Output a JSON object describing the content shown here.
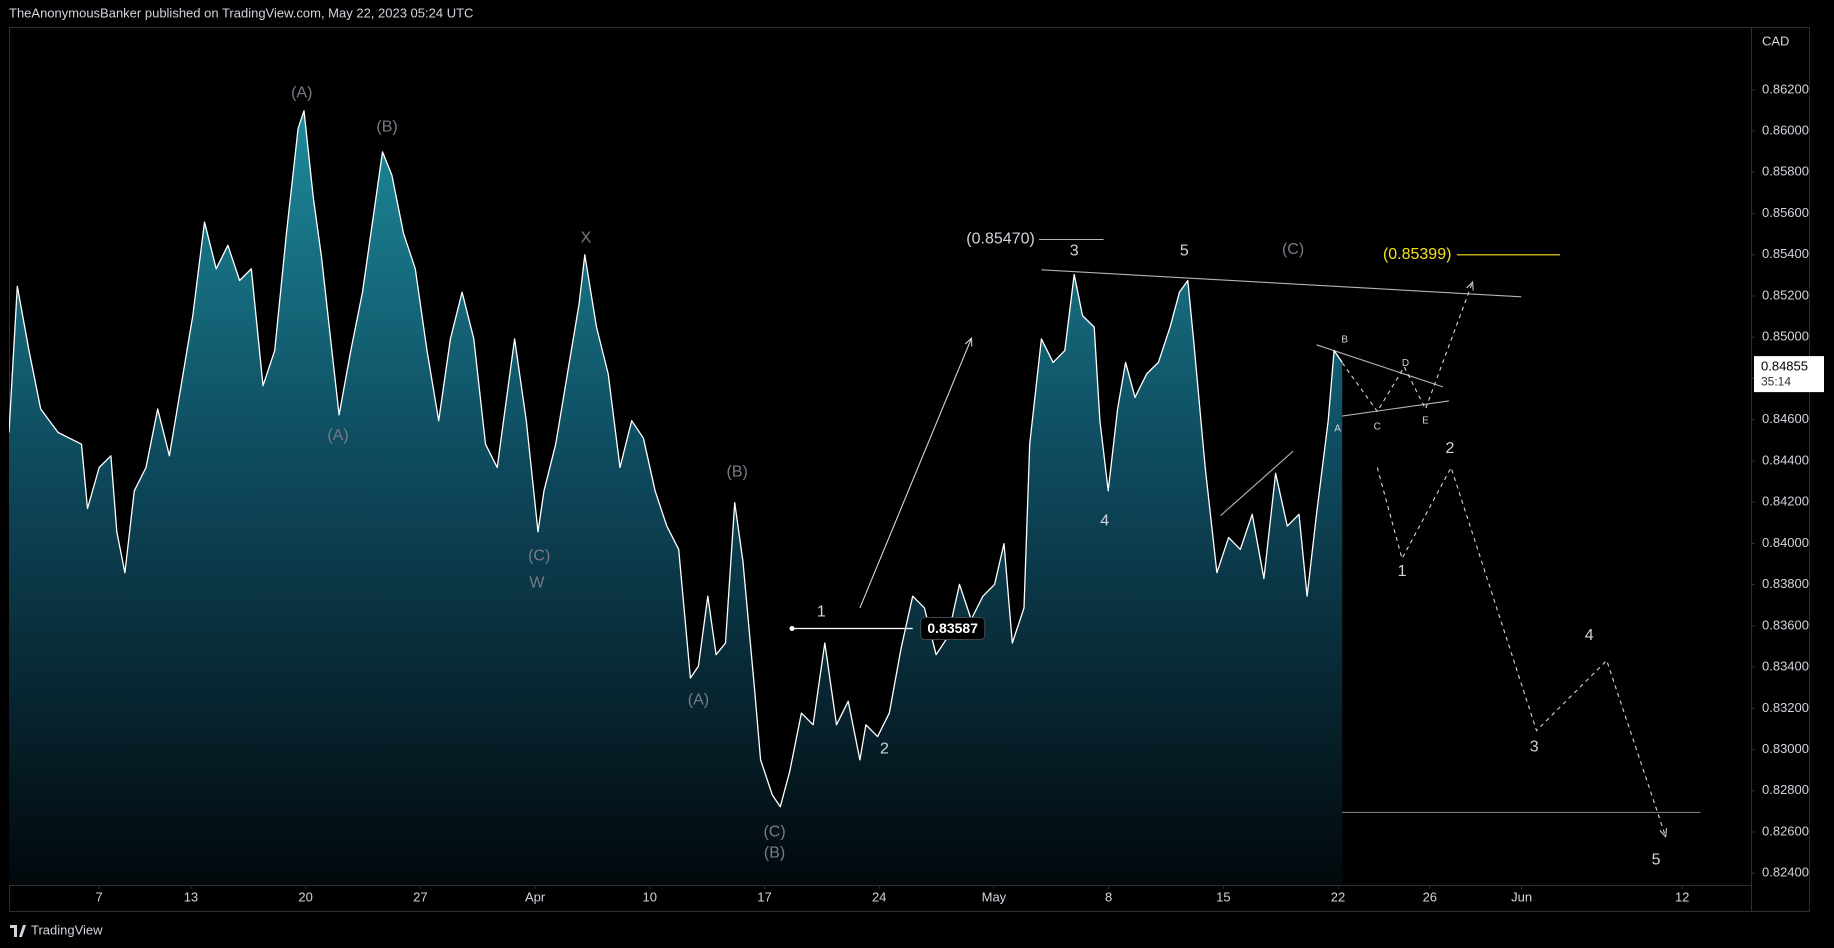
{
  "header": "TheAnonymousBanker published on TradingView.com, May 22, 2023 05:24 UTC",
  "footer": "TradingView",
  "chart_data": {
    "type": "area",
    "currency": "CAD",
    "xlim": [
      -3.93,
      72.0
    ],
    "ylim": [
      0.82343,
      0.86495
    ],
    "xticks": [
      {
        "value": 0,
        "label": "7"
      },
      {
        "value": 4,
        "label": "13"
      },
      {
        "value": 9,
        "label": "20"
      },
      {
        "value": 14,
        "label": "27"
      },
      {
        "value": 19,
        "label": "Apr"
      },
      {
        "value": 24,
        "label": "10"
      },
      {
        "value": 29,
        "label": "17"
      },
      {
        "value": 34,
        "label": "24"
      },
      {
        "value": 39,
        "label": "May"
      },
      {
        "value": 44,
        "label": "8"
      },
      {
        "value": 49,
        "label": "15"
      },
      {
        "value": 54,
        "label": "22"
      },
      {
        "value": 58,
        "label": "26"
      },
      {
        "value": 62,
        "label": "Jun"
      },
      {
        "value": 69,
        "label": "12"
      }
    ],
    "yticks": [
      {
        "value": 0.824,
        "label": "0.82400"
      },
      {
        "value": 0.826,
        "label": "0.82600"
      },
      {
        "value": 0.828,
        "label": "0.82800"
      },
      {
        "value": 0.83,
        "label": "0.83000"
      },
      {
        "value": 0.832,
        "label": "0.83200"
      },
      {
        "value": 0.834,
        "label": "0.83400"
      },
      {
        "value": 0.836,
        "label": "0.83600"
      },
      {
        "value": 0.838,
        "label": "0.83800"
      },
      {
        "value": 0.84,
        "label": "0.84000"
      },
      {
        "value": 0.842,
        "label": "0.84200"
      },
      {
        "value": 0.844,
        "label": "0.84400"
      },
      {
        "value": 0.846,
        "label": "0.84600"
      },
      {
        "value": 0.848,
        "label": "0.84800"
      },
      {
        "value": 0.85,
        "label": "0.85000"
      },
      {
        "value": 0.852,
        "label": "0.85200"
      },
      {
        "value": 0.854,
        "label": "0.85400"
      },
      {
        "value": 0.856,
        "label": "0.85600"
      },
      {
        "value": 0.858,
        "label": "0.85800"
      },
      {
        "value": 0.86,
        "label": "0.86000"
      },
      {
        "value": 0.862,
        "label": "0.86200"
      }
    ],
    "series": [
      {
        "color": "#ffffff",
        "x": [
          -3.93,
          -3.57,
          -3.06,
          -2.55,
          -1.79,
          -0.77,
          -0.51,
          0,
          0.51,
          0.77,
          1.12,
          1.53,
          2.04,
          2.55,
          3.06,
          3.57,
          4.08,
          4.59,
          5.1,
          5.61,
          6.12,
          6.63,
          7.14,
          7.65,
          8.16,
          8.67,
          8.93,
          9.34,
          9.69,
          10.2,
          10.46,
          10.97,
          11.48,
          11.99,
          12.35,
          12.76,
          13.27,
          13.78,
          14.29,
          14.8,
          15.31,
          15.82,
          16.33,
          16.84,
          17.35,
          18.11,
          18.62,
          19.13,
          19.39,
          19.9,
          20.41,
          20.92,
          21.17,
          21.68,
          22.19,
          22.7,
          23.21,
          23.72,
          24.23,
          24.74,
          25.26,
          25.77,
          26.12,
          26.53,
          26.89,
          27.3,
          27.7,
          28.06,
          28.57,
          28.83,
          29.34,
          29.69,
          30.1,
          30.61,
          31.12,
          31.63,
          32.14,
          32.65,
          33.16,
          33.42,
          33.93,
          34.44,
          34.95,
          35.46,
          35.97,
          36.48,
          36.99,
          37.5,
          38.01,
          38.52,
          39.03,
          39.44,
          39.8,
          40.31,
          40.56,
          41.07,
          41.58,
          42.09,
          42.5,
          42.86,
          43.37,
          43.62,
          43.98,
          44.39,
          44.74,
          45.15,
          45.66,
          46.17,
          46.68,
          47.09,
          47.45,
          47.7,
          48.21,
          48.72,
          49.23,
          49.74,
          50.26,
          50.77,
          51.28,
          51.79,
          52.3,
          52.65,
          53.06,
          53.57,
          53.83,
          54.18
        ],
        "values": [
          0.84538,
          0.85247,
          0.84935,
          0.84652,
          0.84538,
          0.84481,
          0.84169,
          0.84368,
          0.84425,
          0.84056,
          0.83858,
          0.84255,
          0.84368,
          0.84652,
          0.84425,
          0.84765,
          0.85105,
          0.85559,
          0.85332,
          0.85446,
          0.85275,
          0.85332,
          0.84765,
          0.84935,
          0.85502,
          0.86013,
          0.86098,
          0.85673,
          0.85389,
          0.84878,
          0.84623,
          0.84935,
          0.85219,
          0.85616,
          0.85899,
          0.85786,
          0.85502,
          0.85332,
          0.84935,
          0.84595,
          0.84992,
          0.85219,
          0.84992,
          0.84481,
          0.84368,
          0.84992,
          0.84595,
          0.84056,
          0.84255,
          0.84481,
          0.84822,
          0.85162,
          0.854,
          0.85049,
          0.84822,
          0.84368,
          0.84595,
          0.8451,
          0.84255,
          0.84084,
          0.83971,
          0.83347,
          0.83404,
          0.83744,
          0.8346,
          0.83517,
          0.84198,
          0.83914,
          0.8329,
          0.8295,
          0.8278,
          0.82723,
          0.82893,
          0.83177,
          0.8312,
          0.83517,
          0.8312,
          0.83234,
          0.8295,
          0.8312,
          0.83063,
          0.83177,
          0.83489,
          0.83744,
          0.83687,
          0.8346,
          0.83546,
          0.83801,
          0.83631,
          0.83744,
          0.83801,
          0.83999,
          0.83517,
          0.83687,
          0.84481,
          0.84992,
          0.84878,
          0.84935,
          0.85304,
          0.85105,
          0.85049,
          0.84595,
          0.84255,
          0.84652,
          0.84878,
          0.84708,
          0.84822,
          0.84878,
          0.85049,
          0.85219,
          0.85275,
          0.84992,
          0.84368,
          0.83858,
          0.84028,
          0.83971,
          0.84141,
          0.83829,
          0.8434,
          0.84084,
          0.84141,
          0.83744,
          0.84141,
          0.84595,
          0.84935,
          0.84878
        ]
      }
    ],
    "last_price": {
      "value": 0.84855,
      "label": "0.84855",
      "countdown": "35:14"
    },
    "price_line": {
      "value": 0.83587,
      "label": "0.83587",
      "from": 30.2,
      "to": 35.46
    },
    "annotations": [
      {
        "text": "(A)",
        "x": 8.83,
        "y": 0.86183,
        "color": "#787b86"
      },
      {
        "text": "(B)",
        "x": 12.55,
        "y": 0.86018,
        "color": "#787b86"
      },
      {
        "text": "X",
        "x": 21.22,
        "y": 0.8548,
        "color": "#787b86"
      },
      {
        "text": "(A)",
        "x": 10.41,
        "y": 0.84521,
        "color": "#787b86"
      },
      {
        "text": "(C)",
        "x": 19.18,
        "y": 0.83937,
        "color": "#787b86"
      },
      {
        "text": "W",
        "x": 19.08,
        "y": 0.83806,
        "color": "#787b86"
      },
      {
        "text": "(B)",
        "x": 27.81,
        "y": 0.84345,
        "color": "#787b86"
      },
      {
        "text": "(A)",
        "x": 26.12,
        "y": 0.83239,
        "color": "#787b86"
      },
      {
        "text": "(C)",
        "x": 29.44,
        "y": 0.82598,
        "color": "#787b86"
      },
      {
        "text": "(B)",
        "x": 29.44,
        "y": 0.82496,
        "color": "#787b86"
      },
      {
        "text": "1",
        "x": 31.48,
        "y": 0.83665,
        "color": "#d1d4dc"
      },
      {
        "text": "2",
        "x": 34.23,
        "y": 0.83001,
        "color": "#d1d4dc"
      },
      {
        "text": "(0.85470)",
        "x": 39.29,
        "y": 0.85474,
        "color": "#d1d4dc"
      },
      {
        "text": "3",
        "x": 42.5,
        "y": 0.85417,
        "color": "#d1d4dc"
      },
      {
        "text": "5",
        "x": 47.3,
        "y": 0.85417,
        "color": "#d1d4dc"
      },
      {
        "text": "(C)",
        "x": 52.04,
        "y": 0.85423,
        "color": "#787b86"
      },
      {
        "text": "4",
        "x": 43.83,
        "y": 0.84107,
        "color": "#d1d4dc"
      },
      {
        "text": "(0.85399)",
        "x": 57.45,
        "y": 0.854,
        "color": "#f5e31a"
      },
      {
        "text": "2",
        "x": 58.88,
        "y": 0.84459,
        "color": "#d1d4dc"
      },
      {
        "text": "1",
        "x": 56.79,
        "y": 0.83863,
        "color": "#d1d4dc"
      },
      {
        "text": "3",
        "x": 62.55,
        "y": 0.83012,
        "color": "#d1d4dc"
      },
      {
        "text": "4",
        "x": 64.95,
        "y": 0.83551,
        "color": "#d1d4dc"
      },
      {
        "text": "5",
        "x": 67.86,
        "y": 0.82462,
        "color": "#d1d4dc"
      }
    ],
    "triangle_labels": [
      {
        "text": "B",
        "x": 54.29,
        "y": 0.84986
      },
      {
        "text": "D",
        "x": 56.94,
        "y": 0.84873
      },
      {
        "text": "A",
        "x": 53.98,
        "y": 0.84555
      },
      {
        "text": "C",
        "x": 55.71,
        "y": 0.84566
      },
      {
        "text": "E",
        "x": 57.81,
        "y": 0.84595
      }
    ],
    "drawings": [
      {
        "points": [
          [
            29.08,
            0.82695
          ],
          [
            69.8,
            0.82695
          ]
        ],
        "color": "#787b86",
        "dashed": false,
        "arrow": false
      },
      {
        "points": [
          [
            41.07,
            0.85327
          ],
          [
            61.99,
            0.85196
          ]
        ],
        "color": "#b2b5be",
        "dashed": false,
        "arrow": false
      },
      {
        "points": [
          [
            59.18,
            0.854
          ],
          [
            63.67,
            0.854
          ]
        ],
        "color": "#f5e31a",
        "dashed": false,
        "arrow": false
      },
      {
        "points": [
          [
            40.97,
            0.85474
          ],
          [
            43.78,
            0.85474
          ]
        ],
        "color": "#b2b5be",
        "dashed": false,
        "arrow": false
      },
      {
        "points": [
          [
            33.16,
            0.83687
          ],
          [
            38.01,
            0.84992
          ]
        ],
        "color": "#d1d4dc",
        "dashed": false,
        "arrow": true
      },
      {
        "points": [
          [
            30.87,
            0.82848
          ],
          [
            34.95,
            0.82848
          ]
        ],
        "color": "#b2b5be",
        "dashed": true,
        "arrow": false
      },
      {
        "points": [
          [
            48.21,
            0.83835
          ],
          [
            54.18,
            0.83682
          ]
        ],
        "color": "#b2b5be",
        "dashed": false,
        "arrow": false
      },
      {
        "points": [
          [
            48.88,
            0.84135
          ],
          [
            52.04,
            0.84447
          ]
        ],
        "color": "#b2b5be",
        "dashed": false,
        "arrow": false
      },
      {
        "points": [
          [
            53.06,
            0.84963
          ],
          [
            58.57,
            0.84759
          ]
        ],
        "color": "#b2b5be",
        "dashed": false,
        "arrow": false
      },
      {
        "points": [
          [
            53.83,
            0.84612
          ],
          [
            58.83,
            0.84691
          ]
        ],
        "color": "#b2b5be",
        "dashed": false,
        "arrow": false
      },
      {
        "points": [
          [
            53.98,
            0.84907
          ],
          [
            55.71,
            0.8464
          ],
          [
            56.89,
            0.84856
          ],
          [
            57.81,
            0.84652
          ],
          [
            59.85,
            0.85264
          ]
        ],
        "color": "#d1d4dc",
        "dashed": true,
        "arrow": true
      },
      {
        "points": [
          [
            55.71,
            0.84368
          ],
          [
            56.79,
            0.83926
          ],
          [
            58.93,
            0.84368
          ],
          [
            62.65,
            0.83092
          ],
          [
            65.71,
            0.83432
          ],
          [
            68.27,
            0.82581
          ]
        ],
        "color": "#d1d4dc",
        "dashed": true,
        "arrow": true
      }
    ]
  }
}
